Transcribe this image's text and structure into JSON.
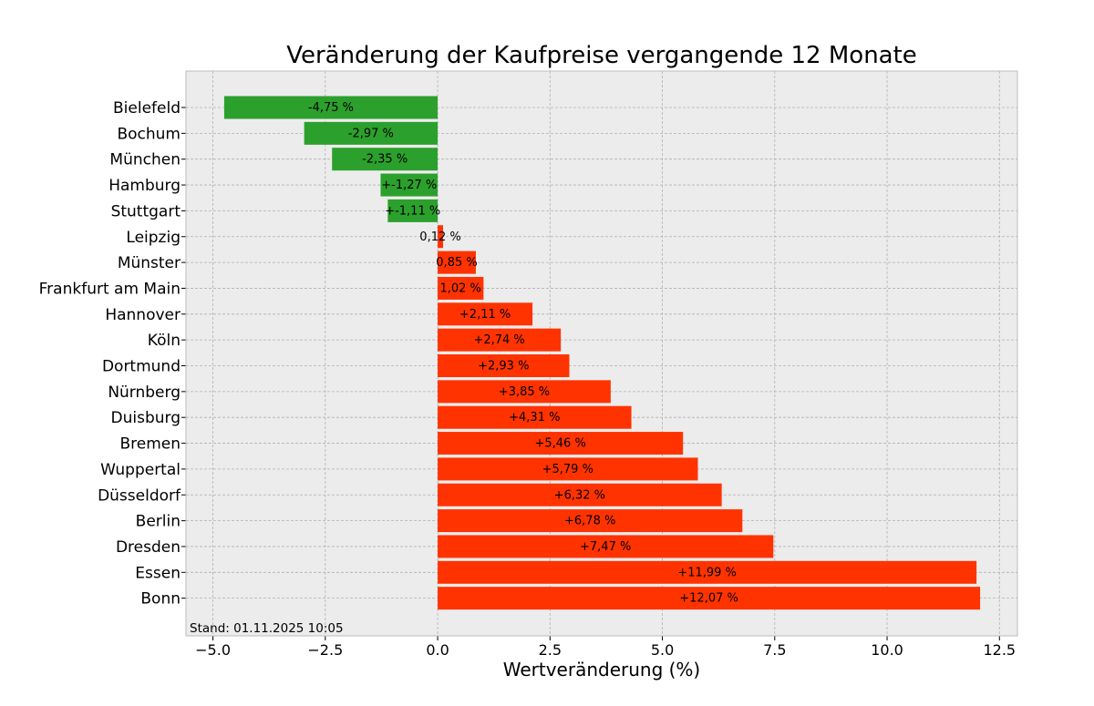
{
  "chart_data": {
    "type": "bar",
    "orientation": "horizontal",
    "title": "Veränderung der Kaufpreise vergangende 12 Monate",
    "xlabel": "Wertveränderung (%)",
    "ylabel": "",
    "xlim": [
      -5.6,
      12.9
    ],
    "xticks": [
      -5.0,
      -2.5,
      0.0,
      2.5,
      5.0,
      7.5,
      10.0,
      12.5
    ],
    "xtick_labels": [
      "−5.0",
      "−2.5",
      "0.0",
      "2.5",
      "5.0",
      "7.5",
      "10.0",
      "12.5"
    ],
    "grid": true,
    "categories": [
      "Bielefeld",
      "Bochum",
      "München",
      "Hamburg",
      "Stuttgart",
      "Leipzig",
      "Münster",
      "Frankfurt am Main",
      "Hannover",
      "Köln",
      "Dortmund",
      "Nürnberg",
      "Duisburg",
      "Bremen",
      "Wuppertal",
      "Düsseldorf",
      "Berlin",
      "Dresden",
      "Essen",
      "Bonn"
    ],
    "values": [
      -4.75,
      -2.97,
      -2.35,
      -1.27,
      -1.11,
      0.12,
      0.85,
      1.02,
      2.11,
      2.74,
      2.93,
      3.85,
      4.31,
      5.46,
      5.79,
      6.32,
      6.78,
      7.47,
      11.99,
      12.07
    ],
    "labels": [
      "-4,75 %",
      "-2,97 %",
      "-2,35 %",
      "+-1,27 %",
      "+-1,11 %",
      "0,12 %",
      "0,85 %",
      "1,02 %",
      "+2,11 %",
      "+2,74 %",
      "+2,93 %",
      "+3,85 %",
      "+4,31 %",
      "+5,46 %",
      "+5,79 %",
      "+6,32 %",
      "+6,78 %",
      "+7,47 %",
      "+11,99 %",
      "+12,07 %"
    ],
    "colors": {
      "negative": "#2ca02c",
      "positive": "#ff3300",
      "background": "#ececec",
      "grid": "#b0b0b0"
    },
    "annotation": "Stand: 01.11.2025 10:05"
  }
}
